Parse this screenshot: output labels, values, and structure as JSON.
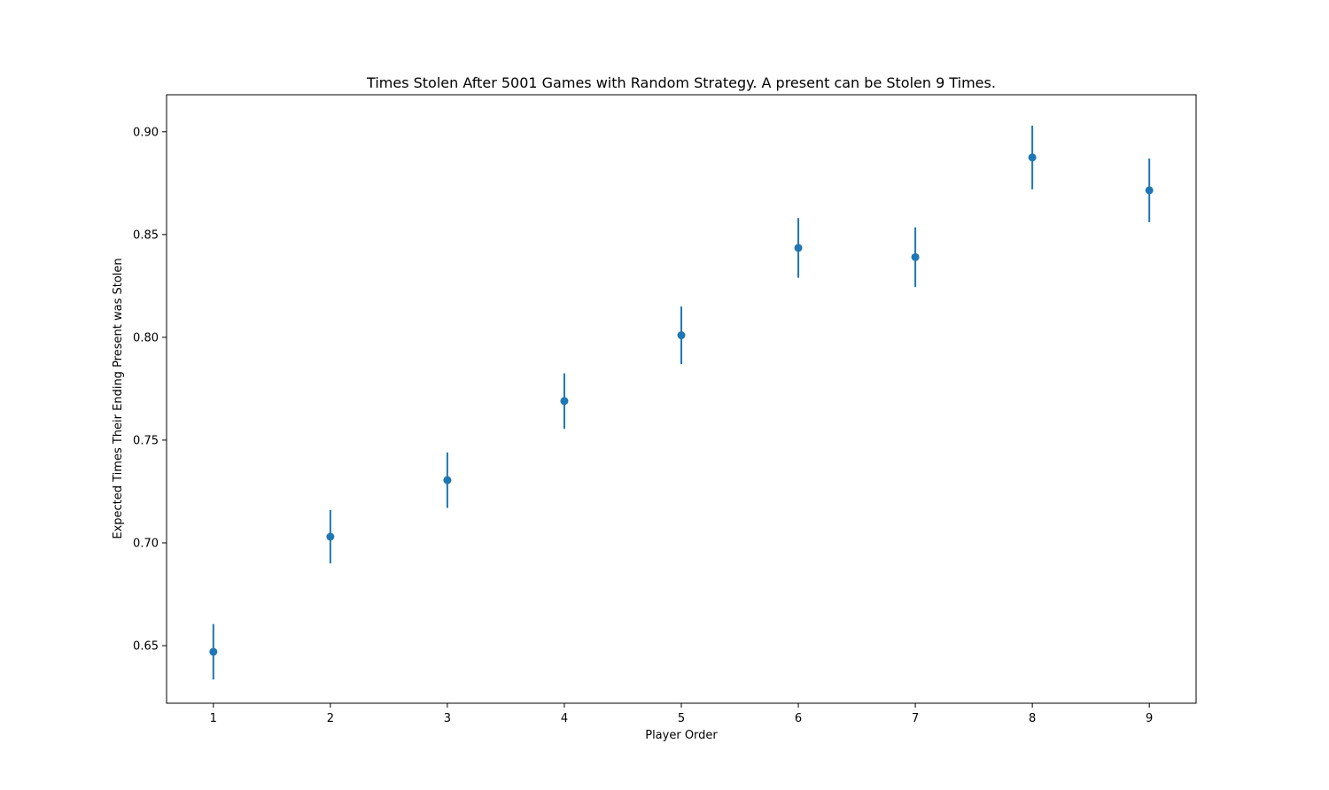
{
  "chart_data": {
    "type": "scatter",
    "title": "Times Stolen After 5001 Games with Random Strategy. A present can be Stolen 9 Times.",
    "xlabel": "Player Order",
    "ylabel": "Expected Times Their Ending Present was Stolen",
    "xlim": [
      0.6,
      9.4
    ],
    "ylim": [
      0.622,
      0.918
    ],
    "x_ticks": [
      1,
      2,
      3,
      4,
      5,
      6,
      7,
      8,
      9
    ],
    "y_ticks": [
      "0.65",
      "0.70",
      "0.75",
      "0.80",
      "0.85",
      "0.90"
    ],
    "x": [
      1,
      2,
      3,
      4,
      5,
      6,
      7,
      8,
      9
    ],
    "series": [
      {
        "y": [
          0.647,
          0.703,
          0.7305,
          0.769,
          0.801,
          0.8435,
          0.839,
          0.8875,
          0.8715
        ],
        "yerr": [
          0.0135,
          0.013,
          0.0135,
          0.0135,
          0.014,
          0.0145,
          0.0145,
          0.0155,
          0.0155
        ]
      }
    ],
    "color": "#1f77b4",
    "grid": false,
    "legend": "none"
  }
}
